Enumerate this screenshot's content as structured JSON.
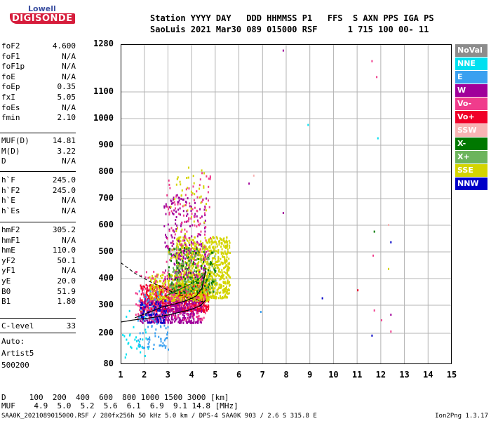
{
  "logo": {
    "line1": "Lowell",
    "line2": "DIGISONDE"
  },
  "header": {
    "labels": "Station YYYY DAY   DDD HHMMSS P1   FFS  S AXN PPS IGA PS",
    "values": "SaoLuis 2021 Mar30 089 015000 RSF      1 715 100 00- 11"
  },
  "params_group1": [
    {
      "k": "foF2",
      "v": "4.600"
    },
    {
      "k": "foF1",
      "v": "N/A"
    },
    {
      "k": "foF1p",
      "v": "N/A"
    },
    {
      "k": "foE",
      "v": "N/A"
    },
    {
      "k": "foEp",
      "v": "0.35"
    },
    {
      "k": "fxI",
      "v": "5.05"
    },
    {
      "k": "foEs",
      "v": "N/A"
    },
    {
      "k": "fmin",
      "v": "2.10"
    }
  ],
  "params_group2": [
    {
      "k": "MUF(D)",
      "v": "14.81"
    },
    {
      "k": "M(D)",
      "v": "3.22"
    },
    {
      "k": "D",
      "v": "N/A"
    }
  ],
  "params_group3": [
    {
      "k": "h`F",
      "v": "245.0"
    },
    {
      "k": "h`F2",
      "v": "245.0"
    },
    {
      "k": "h`E",
      "v": "N/A"
    },
    {
      "k": "h`Es",
      "v": "N/A"
    }
  ],
  "params_group4": [
    {
      "k": "hmF2",
      "v": "305.2"
    },
    {
      "k": "hmF1",
      "v": "N/A"
    },
    {
      "k": "hmE",
      "v": "110.0"
    },
    {
      "k": "yF2",
      "v": "50.1"
    },
    {
      "k": "yF1",
      "v": "N/A"
    },
    {
      "k": "yE",
      "v": "20.0"
    },
    {
      "k": "B0",
      "v": "51.9"
    },
    {
      "k": "B1",
      "v": "1.80"
    }
  ],
  "clevel": {
    "k": "C-level",
    "v": "33"
  },
  "auto": {
    "line1": "Auto:",
    "line2": "Artist5",
    "line3": "500200"
  },
  "legend": [
    {
      "label": "NoVal",
      "color": "#8c8c8c"
    },
    {
      "label": "NNE",
      "color": "#00e0f0"
    },
    {
      "label": "E",
      "color": "#3aa0f0"
    },
    {
      "label": "W",
      "color": "#a0009a"
    },
    {
      "label": "Vo-",
      "color": "#f03c8c"
    },
    {
      "label": "Vo+",
      "color": "#f00028"
    },
    {
      "label": "SSW",
      "color": "#f8b4b4"
    },
    {
      "label": "X-",
      "color": "#007800"
    },
    {
      "label": "X+",
      "color": "#6cb45c"
    },
    {
      "label": "SSE",
      "color": "#d4d400"
    },
    {
      "label": "NNW",
      "color": "#0000c8"
    }
  ],
  "chart_data": {
    "type": "scatter",
    "x_ticks": [
      "1",
      "2",
      "3",
      "4",
      "5",
      "6",
      "7",
      "8",
      "9",
      "10",
      "11",
      "12",
      "13",
      "14",
      "15"
    ],
    "y_ticks": [
      "80",
      "200",
      "300",
      "400",
      "500",
      "600",
      "700",
      "800",
      "900",
      "1000",
      "1100",
      "1280"
    ],
    "xlim": [
      1,
      15
    ],
    "grid": true
  },
  "bottom": {
    "line1": "D     100  200  400  600  800 1000 1500 3000 [km]",
    "line2": "MUF    4.9  5.0  5.2  5.6  6.1  6.9  9.1 14.8 [MHz]"
  },
  "footer": "SAA0K_2021089015000.RSF / 280fx256h 50 kHz 5.0 km / DPS-4 SAA0K 903 / 2.6 S 315.8 E",
  "version": "Ion2Png 1.3.17"
}
